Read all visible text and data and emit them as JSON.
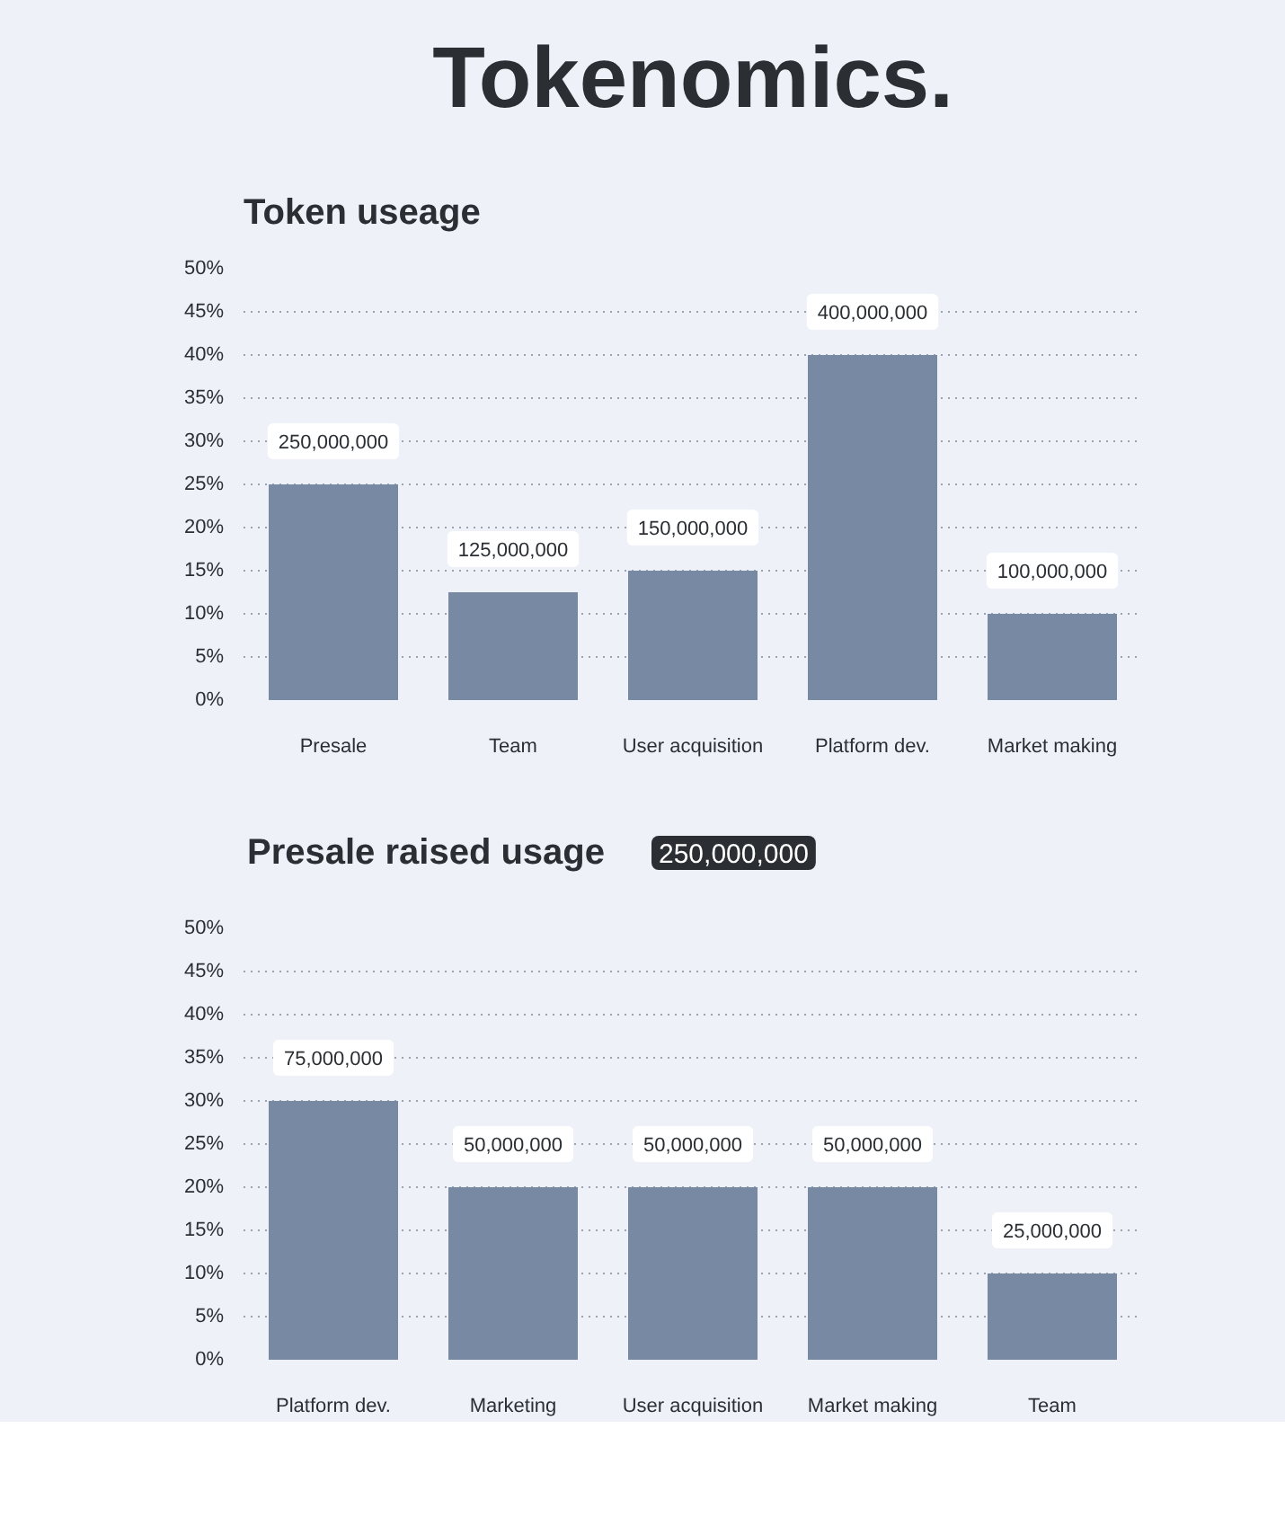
{
  "chart_data": [
    {
      "type": "bar",
      "title": "Tokenomics.",
      "subtitle": "Token useage",
      "categories": [
        "Presale",
        "Team",
        "User acquisition",
        "Platform dev.",
        "Market making"
      ],
      "values": [
        25,
        12.5,
        15,
        40,
        10
      ],
      "annotations": [
        {
          "text": "250,000,000",
          "x": "Presale",
          "y": 25
        },
        {
          "text": "125,000,000",
          "x": "Team",
          "y": 12.5
        },
        {
          "text": "150,000,000",
          "x": "User acquisition",
          "y": 15
        },
        {
          "text": "400,000,000",
          "x": "Platform dev.",
          "y": 40
        },
        {
          "text": "100,000,000",
          "x": "Market making",
          "y": 10
        }
      ],
      "color": "#788aa3",
      "ylim": [
        0,
        50
      ],
      "yticks": [
        {
          "value": 0,
          "label": "0%"
        },
        {
          "value": 5,
          "label": "5%"
        },
        {
          "value": 10,
          "label": "10%"
        },
        {
          "value": 15,
          "label": "15%"
        },
        {
          "value": 20,
          "label": "20%"
        },
        {
          "value": 25,
          "label": "25%"
        },
        {
          "value": 30,
          "label": "30%"
        },
        {
          "value": 35,
          "label": "35%"
        },
        {
          "value": 40,
          "label": "40%"
        },
        {
          "value": 45,
          "label": "45%"
        },
        {
          "value": 50,
          "label": "50%"
        }
      ],
      "grid": "y"
    },
    {
      "type": "bar",
      "title": "Presale raised usage",
      "categories": [
        "Platform dev.",
        "Marketing",
        "User acquisition",
        "Market making",
        "Team"
      ],
      "values": [
        30,
        20,
        20,
        20,
        10
      ],
      "annotations": [
        "250,000,000",
        {
          "text": "75,000,000",
          "x": "Platform dev.",
          "y": 30
        },
        {
          "text": "50,000,000",
          "x": "Marketing",
          "y": 20
        },
        {
          "text": "50,000,000",
          "x": "User acquisition",
          "y": 20
        },
        {
          "text": "50,000,000",
          "x": "Market making",
          "y": 20
        },
        {
          "text": "25,000,000",
          "x": "Team",
          "y": 10
        }
      ],
      "color": "#788aa3",
      "ylim": [
        0,
        50
      ],
      "yticks": [
        {
          "value": 0,
          "label": "0%"
        },
        {
          "value": 5,
          "label": "5%"
        },
        {
          "value": 10,
          "label": "10%"
        },
        {
          "value": 15,
          "label": "15%"
        },
        {
          "value": 20,
          "label": "20%"
        },
        {
          "value": 25,
          "label": "25%"
        },
        {
          "value": 30,
          "label": "30%"
        },
        {
          "value": 35,
          "label": "35%"
        },
        {
          "value": 40,
          "label": "40%"
        },
        {
          "value": 45,
          "label": "45%"
        },
        {
          "value": 50,
          "label": "50%"
        }
      ],
      "grid": "y"
    }
  ]
}
